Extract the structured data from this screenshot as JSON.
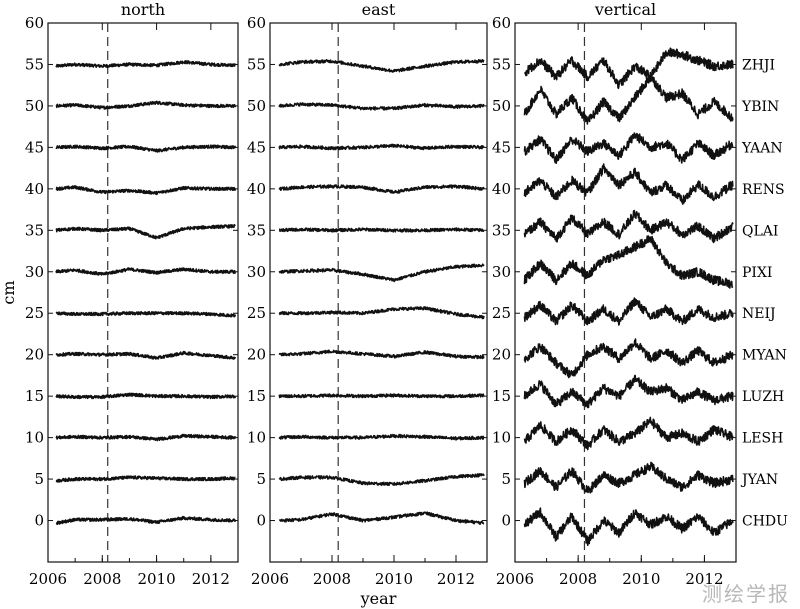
{
  "watermark": "测绘学报",
  "chart_data": [
    {
      "type": "line",
      "title": "north",
      "ylabel": "cm",
      "xlabel": "",
      "xlim": [
        2006,
        2013.0
      ],
      "ylim": [
        -5,
        60
      ],
      "xticks": [
        2006,
        2008,
        2010,
        2012
      ],
      "yticks": [
        0,
        5,
        10,
        15,
        20,
        25,
        30,
        35,
        40,
        45,
        50,
        55,
        60
      ],
      "event_line_x": 2008.2,
      "series": [
        {
          "name": "ZHJI",
          "offset": 55,
          "x": [
            2006.3,
            2007,
            2008,
            2009,
            2010,
            2011,
            2012,
            2012.9
          ],
          "values": [
            54.8,
            55.0,
            54.8,
            55.0,
            54.9,
            55.3,
            55.0,
            54.9
          ]
        },
        {
          "name": "YBIN",
          "offset": 50,
          "x": [
            2006.3,
            2007,
            2008,
            2009,
            2010,
            2011,
            2012,
            2012.9
          ],
          "values": [
            50.0,
            50.1,
            49.8,
            50.0,
            50.4,
            50.1,
            50.0,
            50.0
          ]
        },
        {
          "name": "YAAN",
          "offset": 45,
          "x": [
            2006.3,
            2007,
            2008,
            2009,
            2010,
            2011,
            2012,
            2012.9
          ],
          "values": [
            45.0,
            45.1,
            44.9,
            45.1,
            44.6,
            45.0,
            45.1,
            45.0
          ]
        },
        {
          "name": "RENS",
          "offset": 40,
          "x": [
            2006.3,
            2007,
            2008,
            2009,
            2010,
            2011,
            2012,
            2012.9
          ],
          "values": [
            40.0,
            40.2,
            39.6,
            39.8,
            39.5,
            40.1,
            40.0,
            40.0
          ]
        },
        {
          "name": "QLAI",
          "offset": 35,
          "x": [
            2006.3,
            2007,
            2008,
            2009,
            2010,
            2011,
            2012,
            2012.9
          ],
          "values": [
            35.0,
            35.2,
            35.0,
            35.2,
            34.1,
            35.2,
            35.4,
            35.5
          ]
        },
        {
          "name": "PIXI",
          "offset": 30,
          "x": [
            2006.3,
            2007,
            2008,
            2009,
            2010,
            2011,
            2012,
            2012.9
          ],
          "values": [
            30.0,
            30.2,
            29.7,
            30.3,
            29.9,
            30.3,
            30.0,
            30.0
          ]
        },
        {
          "name": "NEIJ",
          "offset": 25,
          "x": [
            2006.3,
            2007,
            2008,
            2009,
            2010,
            2011,
            2012,
            2012.9
          ],
          "values": [
            25.0,
            24.9,
            24.9,
            25.0,
            25.0,
            25.0,
            24.9,
            24.7
          ]
        },
        {
          "name": "MYAN",
          "offset": 20,
          "x": [
            2006.3,
            2007,
            2008,
            2009,
            2010,
            2011,
            2012,
            2012.9
          ],
          "values": [
            20.0,
            20.1,
            20.0,
            20.1,
            19.6,
            20.2,
            19.9,
            19.6
          ]
        },
        {
          "name": "LUZH",
          "offset": 15,
          "x": [
            2006.3,
            2007,
            2008,
            2009,
            2010,
            2011,
            2012,
            2012.9
          ],
          "values": [
            15.0,
            14.9,
            14.9,
            15.2,
            15.0,
            15.0,
            14.9,
            15.0
          ]
        },
        {
          "name": "LESH",
          "offset": 10,
          "x": [
            2006.3,
            2007,
            2008,
            2009,
            2010,
            2011,
            2012,
            2012.9
          ],
          "values": [
            10.0,
            10.1,
            10.0,
            10.1,
            9.8,
            10.2,
            10.1,
            10.0
          ]
        },
        {
          "name": "JYAN",
          "offset": 5,
          "x": [
            2006.3,
            2007,
            2008,
            2009,
            2010,
            2011,
            2012,
            2012.9
          ],
          "values": [
            4.8,
            5.0,
            5.0,
            5.2,
            5.1,
            5.0,
            5.0,
            5.1
          ]
        },
        {
          "name": "CHDU",
          "offset": 0,
          "x": [
            2006.3,
            2007,
            2008,
            2009,
            2010,
            2011,
            2012,
            2012.9
          ],
          "values": [
            -0.3,
            0.1,
            0.1,
            0.2,
            -0.2,
            0.3,
            0.1,
            0.0
          ]
        }
      ]
    },
    {
      "type": "line",
      "title": "east",
      "xlabel": "year",
      "ylabel": "",
      "xlim": [
        2006,
        2013.0
      ],
      "ylim": [
        -5,
        60
      ],
      "xticks": [
        2006,
        2008,
        2010,
        2012
      ],
      "yticks": [
        0,
        5,
        10,
        15,
        20,
        25,
        30,
        35,
        40,
        45,
        50,
        55,
        60
      ],
      "event_line_x": 2008.2,
      "series": [
        {
          "name": "ZHJI",
          "offset": 55,
          "x": [
            2006.3,
            2007,
            2008,
            2009,
            2010,
            2011,
            2012,
            2012.9
          ],
          "values": [
            55.0,
            55.3,
            55.4,
            54.8,
            54.2,
            54.8,
            55.3,
            55.4
          ]
        },
        {
          "name": "YBIN",
          "offset": 50,
          "x": [
            2006.3,
            2007,
            2008,
            2009,
            2010,
            2011,
            2012,
            2012.9
          ],
          "values": [
            50.0,
            50.2,
            50.1,
            49.7,
            49.7,
            50.1,
            49.9,
            50.0
          ]
        },
        {
          "name": "YAAN",
          "offset": 45,
          "x": [
            2006.3,
            2007,
            2008,
            2009,
            2010,
            2011,
            2012,
            2012.9
          ],
          "values": [
            45.0,
            45.1,
            44.9,
            45.0,
            45.2,
            44.9,
            45.1,
            45.0
          ]
        },
        {
          "name": "RENS",
          "offset": 40,
          "x": [
            2006.3,
            2007,
            2008,
            2009,
            2010,
            2011,
            2012,
            2012.9
          ],
          "values": [
            40.0,
            40.2,
            40.3,
            40.2,
            39.6,
            40.2,
            40.3,
            40.0
          ]
        },
        {
          "name": "QLAI",
          "offset": 35,
          "x": [
            2006.3,
            2007,
            2008,
            2009,
            2010,
            2011,
            2012,
            2012.9
          ],
          "values": [
            35.0,
            35.1,
            35.0,
            35.1,
            35.0,
            35.0,
            35.1,
            35.0
          ]
        },
        {
          "name": "PIXI",
          "offset": 30,
          "x": [
            2006.3,
            2007,
            2008,
            2009,
            2010,
            2011,
            2012,
            2012.9
          ],
          "values": [
            30.0,
            30.1,
            30.2,
            29.7,
            29.0,
            30.0,
            30.6,
            30.8
          ]
        },
        {
          "name": "NEIJ",
          "offset": 25,
          "x": [
            2006.3,
            2007,
            2008,
            2009,
            2010,
            2011,
            2012,
            2012.9
          ],
          "values": [
            25.0,
            25.0,
            25.1,
            25.0,
            25.5,
            25.6,
            24.9,
            24.5
          ]
        },
        {
          "name": "MYAN",
          "offset": 20,
          "x": [
            2006.3,
            2007,
            2008,
            2009,
            2010,
            2011,
            2012,
            2012.9
          ],
          "values": [
            20.0,
            20.1,
            20.4,
            20.1,
            19.8,
            20.3,
            19.8,
            19.7
          ]
        },
        {
          "name": "LUZH",
          "offset": 15,
          "x": [
            2006.3,
            2007,
            2008,
            2009,
            2010,
            2011,
            2012,
            2012.9
          ],
          "values": [
            15.0,
            15.0,
            15.1,
            15.0,
            15.1,
            15.0,
            15.0,
            15.1
          ]
        },
        {
          "name": "LESH",
          "offset": 10,
          "x": [
            2006.3,
            2007,
            2008,
            2009,
            2010,
            2011,
            2012,
            2012.9
          ],
          "values": [
            10.0,
            10.1,
            10.0,
            10.0,
            10.2,
            10.1,
            9.9,
            10.0
          ]
        },
        {
          "name": "JYAN",
          "offset": 5,
          "x": [
            2006.3,
            2007,
            2008,
            2009,
            2010,
            2011,
            2012,
            2012.9
          ],
          "values": [
            5.0,
            5.2,
            5.2,
            4.5,
            4.4,
            4.8,
            5.3,
            5.5
          ]
        },
        {
          "name": "CHDU",
          "offset": 0,
          "x": [
            2006.3,
            2007,
            2008,
            2009,
            2010,
            2011,
            2012,
            2012.9
          ],
          "values": [
            0.0,
            0.1,
            0.8,
            0.0,
            0.4,
            0.9,
            0.0,
            -0.3
          ]
        }
      ]
    },
    {
      "type": "line",
      "title": "vertical",
      "xlabel": "",
      "ylabel": "",
      "xlim": [
        2006,
        2013.0
      ],
      "ylim": [
        -5,
        60
      ],
      "xticks": [
        2006,
        2008,
        2010,
        2012
      ],
      "yticks": [
        0,
        5,
        10,
        15,
        20,
        25,
        30,
        35,
        40,
        45,
        50,
        55,
        60
      ],
      "event_line_x": 2008.2,
      "series": [
        {
          "name": "ZHJI",
          "offset": 55,
          "x": [
            2006.3,
            2006.8,
            2007.3,
            2007.8,
            2008.3,
            2008.8,
            2009.3,
            2009.8,
            2010.3,
            2010.8,
            2011.3,
            2011.8,
            2012.3,
            2012.9
          ],
          "values": [
            54.0,
            55.5,
            53.5,
            55.5,
            53.5,
            55.5,
            52.5,
            54.8,
            53.5,
            56.5,
            56.2,
            55.5,
            54.8,
            55.0
          ]
        },
        {
          "name": "YBIN",
          "offset": 50,
          "x": [
            2006.3,
            2006.8,
            2007.3,
            2007.8,
            2008.3,
            2008.8,
            2009.3,
            2009.8,
            2010.3,
            2010.8,
            2011.3,
            2011.8,
            2012.3,
            2012.9
          ],
          "values": [
            49.0,
            52.0,
            49.0,
            51.0,
            48.0,
            50.5,
            48.5,
            51.0,
            53.5,
            51.0,
            51.5,
            49.0,
            50.5,
            48.5
          ]
        },
        {
          "name": "YAAN",
          "offset": 45,
          "x": [
            2006.3,
            2006.8,
            2007.3,
            2007.8,
            2008.3,
            2008.8,
            2009.3,
            2009.8,
            2010.3,
            2010.8,
            2011.3,
            2011.8,
            2012.3,
            2012.9
          ],
          "values": [
            44.5,
            46.0,
            43.5,
            46.0,
            44.5,
            45.5,
            44.0,
            46.5,
            45.0,
            45.5,
            43.5,
            45.5,
            44.0,
            45.5
          ]
        },
        {
          "name": "RENS",
          "offset": 40,
          "x": [
            2006.3,
            2006.8,
            2007.3,
            2007.8,
            2008.3,
            2008.8,
            2009.3,
            2009.8,
            2010.3,
            2010.8,
            2011.3,
            2011.8,
            2012.3,
            2012.9
          ],
          "values": [
            39.5,
            41.0,
            39.0,
            41.0,
            39.5,
            42.5,
            40.5,
            42.0,
            39.5,
            40.5,
            38.5,
            40.5,
            39.0,
            40.5
          ]
        },
        {
          "name": "QLAI",
          "offset": 35,
          "x": [
            2006.3,
            2006.8,
            2007.3,
            2007.8,
            2008.3,
            2008.8,
            2009.3,
            2009.8,
            2010.3,
            2010.8,
            2011.3,
            2011.8,
            2012.3,
            2012.9
          ],
          "values": [
            34.5,
            36.0,
            34.0,
            36.5,
            34.5,
            36.0,
            34.5,
            37.0,
            35.0,
            36.0,
            34.5,
            35.5,
            34.0,
            35.5
          ]
        },
        {
          "name": "PIXI",
          "offset": 30,
          "x": [
            2006.3,
            2006.8,
            2007.3,
            2007.8,
            2008.3,
            2008.8,
            2009.3,
            2009.8,
            2010.3,
            2010.8,
            2011.3,
            2011.8,
            2012.3,
            2012.9
          ],
          "values": [
            29.0,
            31.0,
            29.0,
            31.0,
            29.5,
            31.5,
            32.0,
            33.0,
            34.0,
            31.0,
            29.5,
            30.0,
            29.0,
            28.5
          ]
        },
        {
          "name": "NEIJ",
          "offset": 25,
          "x": [
            2006.3,
            2006.8,
            2007.3,
            2007.8,
            2008.3,
            2008.8,
            2009.3,
            2009.8,
            2010.3,
            2010.8,
            2011.3,
            2011.8,
            2012.3,
            2012.9
          ],
          "values": [
            24.5,
            26.0,
            24.0,
            26.0,
            24.0,
            25.5,
            24.0,
            26.5,
            24.5,
            25.5,
            24.0,
            25.5,
            24.5,
            25.0
          ]
        },
        {
          "name": "MYAN",
          "offset": 20,
          "x": [
            2006.3,
            2006.8,
            2007.3,
            2007.8,
            2008.3,
            2008.8,
            2009.3,
            2009.8,
            2010.3,
            2010.8,
            2011.3,
            2011.8,
            2012.3,
            2012.9
          ],
          "values": [
            19.5,
            21.0,
            19.0,
            17.5,
            20.0,
            21.0,
            19.5,
            21.5,
            19.5,
            20.5,
            19.0,
            20.5,
            19.0,
            20.0
          ]
        },
        {
          "name": "LUZH",
          "offset": 15,
          "x": [
            2006.3,
            2006.8,
            2007.3,
            2007.8,
            2008.3,
            2008.8,
            2009.3,
            2009.8,
            2010.3,
            2010.8,
            2011.3,
            2011.8,
            2012.3,
            2012.9
          ],
          "values": [
            15.0,
            16.5,
            14.0,
            15.5,
            14.0,
            16.0,
            15.0,
            17.0,
            15.5,
            16.0,
            14.5,
            15.5,
            14.5,
            15.0
          ]
        },
        {
          "name": "LESH",
          "offset": 10,
          "x": [
            2006.3,
            2006.8,
            2007.3,
            2007.8,
            2008.3,
            2008.8,
            2009.3,
            2009.8,
            2010.3,
            2010.8,
            2011.3,
            2011.8,
            2012.3,
            2012.9
          ],
          "values": [
            9.5,
            11.5,
            9.5,
            11.0,
            9.0,
            11.0,
            9.5,
            10.5,
            12.0,
            10.0,
            10.5,
            9.5,
            11.0,
            10.0
          ]
        },
        {
          "name": "JYAN",
          "offset": 5,
          "x": [
            2006.3,
            2006.8,
            2007.3,
            2007.8,
            2008.3,
            2008.8,
            2009.3,
            2009.8,
            2010.3,
            2010.8,
            2011.3,
            2011.8,
            2012.3,
            2012.9
          ],
          "values": [
            4.5,
            6.0,
            4.0,
            6.0,
            3.5,
            5.5,
            4.5,
            5.5,
            6.5,
            5.0,
            4.0,
            5.5,
            4.5,
            5.0
          ]
        },
        {
          "name": "CHDU",
          "offset": 0,
          "x": [
            2006.3,
            2006.8,
            2007.3,
            2007.8,
            2008.3,
            2008.8,
            2009.3,
            2009.8,
            2010.3,
            2010.8,
            2011.3,
            2011.8,
            2012.3,
            2012.9
          ],
          "values": [
            -0.5,
            1.0,
            -2.0,
            0.5,
            -2.5,
            0.0,
            -1.5,
            1.0,
            -0.5,
            0.5,
            -1.0,
            0.5,
            -1.5,
            0.0
          ]
        }
      ]
    }
  ]
}
